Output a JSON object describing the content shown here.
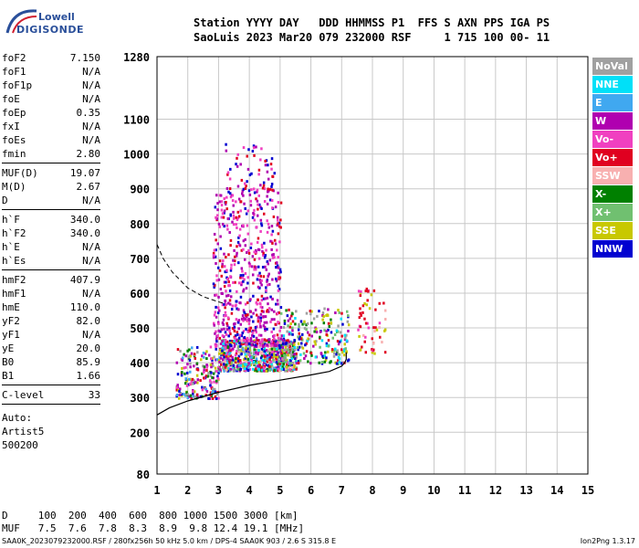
{
  "logo": {
    "line1": "Lowell",
    "line2": "DIGISONDE"
  },
  "header": {
    "row1": "Station YYYY DAY   DDD HHMMSS P1  FFS S AXN PPS IGA PS",
    "row2": "SaoLuis 2023 Mar20 079 232000 RSF     1 715 100 00- 11"
  },
  "params": [
    [
      {
        "k": "foF2",
        "v": "7.150"
      },
      {
        "k": "foF1",
        "v": "N/A"
      },
      {
        "k": "foF1p",
        "v": "N/A"
      },
      {
        "k": "foE",
        "v": "N/A"
      },
      {
        "k": "foEp",
        "v": "0.35"
      },
      {
        "k": "fxI",
        "v": "N/A"
      },
      {
        "k": "foEs",
        "v": "N/A"
      },
      {
        "k": "fmin",
        "v": "2.80"
      }
    ],
    [
      {
        "k": "MUF(D)",
        "v": "19.07"
      },
      {
        "k": "M(D)",
        "v": "2.67"
      },
      {
        "k": "D",
        "v": "N/A"
      }
    ],
    [
      {
        "k": "h`F",
        "v": "340.0"
      },
      {
        "k": "h`F2",
        "v": "340.0"
      },
      {
        "k": "h`E",
        "v": "N/A"
      },
      {
        "k": "h`Es",
        "v": "N/A"
      }
    ],
    [
      {
        "k": "hmF2",
        "v": "407.9"
      },
      {
        "k": "hmF1",
        "v": "N/A"
      },
      {
        "k": "hmE",
        "v": "110.0"
      },
      {
        "k": "yF2",
        "v": "82.0"
      },
      {
        "k": "yF1",
        "v": "N/A"
      },
      {
        "k": "yE",
        "v": "20.0"
      },
      {
        "k": "B0",
        "v": "85.9"
      },
      {
        "k": "B1",
        "v": "1.66"
      }
    ],
    [
      {
        "k": "C-level",
        "v": "33"
      }
    ]
  ],
  "notes": [
    "Auto:",
    "Artist5",
    "500200"
  ],
  "legend": [
    {
      "label": "NoVal",
      "color": "#a0a0a0"
    },
    {
      "label": "NNE",
      "color": "#00e0f8"
    },
    {
      "label": "E",
      "color": "#40a8f0"
    },
    {
      "label": "W",
      "color": "#b000b0"
    },
    {
      "label": "Vo-",
      "color": "#f040c0"
    },
    {
      "label": "Vo+",
      "color": "#e00020"
    },
    {
      "label": "SSW",
      "color": "#f8b0b0"
    },
    {
      "label": "X-",
      "color": "#008000"
    },
    {
      "label": "X+",
      "color": "#70c070"
    },
    {
      "label": "SSE",
      "color": "#c8c800"
    },
    {
      "label": "NNW",
      "color": "#0000d0"
    }
  ],
  "d_row": "D     100  200  400  600  800 1000 1500 3000 [km]",
  "muf_row": "MUF   7.5  7.6  7.8  8.3  8.9  9.8 12.4 19.1 [MHz]",
  "footer": {
    "left": "SAA0K_2023079232000.RSF / 280fx256h 50 kHz 5.0 km / DPS-4 SAA0K 903 / 2.6 S 315.8 E",
    "right": "Ion2Png 1.3.17"
  },
  "chart_data": {
    "type": "scatter",
    "xlim": [
      1,
      15
    ],
    "ylim": [
      80,
      1280
    ],
    "x_ticks": [
      "1",
      "2",
      "3",
      "4",
      "5",
      "6",
      "7",
      "8",
      "9",
      "10",
      "11",
      "12",
      "13",
      "14",
      "15"
    ],
    "y_ticks": [
      {
        "value": 80,
        "label": "80"
      },
      {
        "value": 200,
        "label": "200"
      },
      {
        "value": 300,
        "label": "300"
      },
      {
        "value": 400,
        "label": "400"
      },
      {
        "value": 500,
        "label": "500"
      },
      {
        "value": 600,
        "label": "600"
      },
      {
        "value": 700,
        "label": "700"
      },
      {
        "value": 800,
        "label": "800"
      },
      {
        "value": 900,
        "label": "900"
      },
      {
        "value": 1000,
        "label": "1000"
      },
      {
        "value": 1100,
        "label": "1100"
      },
      {
        "value": 1280,
        "label": "1280"
      }
    ],
    "grid": true,
    "profile_curve": {
      "x": [
        1.0,
        1.4,
        2.0,
        3.0,
        4.0,
        5.0,
        6.0,
        6.6,
        7.0,
        7.1,
        7.15,
        7.15
      ],
      "y": [
        250,
        270,
        290,
        315,
        335,
        350,
        365,
        375,
        390,
        400,
        410,
        430
      ]
    },
    "dashed_curve": {
      "x": [
        1.0,
        1.2,
        1.5,
        2.0,
        2.5,
        3.0,
        3.2
      ],
      "y": [
        740,
        700,
        660,
        615,
        590,
        575,
        570
      ]
    },
    "echo_clusters": [
      {
        "x": [
          1.6,
          3.0
        ],
        "y": [
          300,
          450
        ],
        "n": 200,
        "colors": [
          0,
          2,
          3,
          4,
          5,
          7,
          9,
          10
        ]
      },
      {
        "x": [
          3.0,
          5.5
        ],
        "y": [
          380,
          470
        ],
        "n": 700,
        "colors": [
          0,
          1,
          2,
          3,
          4,
          5,
          6,
          7,
          8,
          9,
          10
        ]
      },
      {
        "x": [
          2.8,
          5.0
        ],
        "y": [
          450,
          900
        ],
        "n": 600,
        "colors": [
          3,
          3,
          4,
          4,
          5,
          10
        ]
      },
      {
        "x": [
          3.2,
          4.8
        ],
        "y": [
          900,
          1040
        ],
        "n": 60,
        "colors": [
          3,
          4,
          10,
          5
        ]
      },
      {
        "x": [
          5.0,
          7.2
        ],
        "y": [
          400,
          560
        ],
        "n": 250,
        "colors": [
          0,
          1,
          3,
          5,
          7,
          8,
          9,
          10
        ]
      },
      {
        "x": [
          7.5,
          8.4
        ],
        "y": [
          430,
          620
        ],
        "n": 60,
        "colors": [
          5,
          5,
          4,
          6,
          9
        ]
      }
    ]
  }
}
